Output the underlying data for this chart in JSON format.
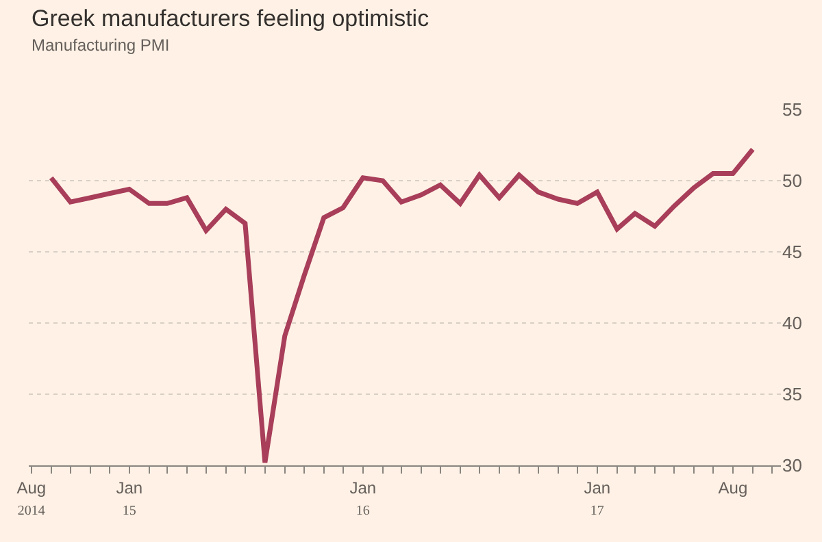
{
  "chart_data": {
    "type": "line",
    "title": "Greek manufacturers feeling optimistic",
    "subtitle": "Manufacturing PMI",
    "x": [
      "2014-09",
      "2014-10",
      "2014-11",
      "2014-12",
      "2015-01",
      "2015-02",
      "2015-03",
      "2015-04",
      "2015-05",
      "2015-06",
      "2015-07",
      "2015-08",
      "2015-09",
      "2015-10",
      "2015-11",
      "2015-12",
      "2016-01",
      "2016-02",
      "2016-03",
      "2016-04",
      "2016-05",
      "2016-06",
      "2016-07",
      "2016-08",
      "2016-09",
      "2016-10",
      "2016-11",
      "2016-12",
      "2017-01",
      "2017-02",
      "2017-03",
      "2017-04",
      "2017-05",
      "2017-06",
      "2017-07",
      "2017-08",
      "2017-09"
    ],
    "series": [
      {
        "color": "#a83e5a",
        "values": [
          50.2,
          48.5,
          48.8,
          49.1,
          49.4,
          48.4,
          48.4,
          48.8,
          46.5,
          48.0,
          47.0,
          30.2,
          39.1,
          43.3,
          47.4,
          48.1,
          50.2,
          50.0,
          48.5,
          49.0,
          49.7,
          48.4,
          50.4,
          48.8,
          50.4,
          49.2,
          48.7,
          48.4,
          49.2,
          46.6,
          47.7,
          46.8,
          48.2,
          49.5,
          50.5,
          50.5,
          52.2
        ]
      }
    ],
    "xlim": [
      "2014-07-28",
      "2017-10-15"
    ],
    "xticks": [
      {
        "value": "2014-08",
        "label": "Aug\n2014"
      },
      {
        "value": "2014-09",
        "label": null
      },
      {
        "value": "2014-10",
        "label": null
      },
      {
        "value": "2014-11",
        "label": null
      },
      {
        "value": "2014-12",
        "label": null
      },
      {
        "value": "2015-01",
        "label": "Jan\n15"
      },
      {
        "value": "2015-02",
        "label": null
      },
      {
        "value": "2015-03",
        "label": null
      },
      {
        "value": "2015-04",
        "label": null
      },
      {
        "value": "2015-05",
        "label": null
      },
      {
        "value": "2015-06",
        "label": null
      },
      {
        "value": "2015-07",
        "label": null
      },
      {
        "value": "2015-08",
        "label": null
      },
      {
        "value": "2015-09",
        "label": null
      },
      {
        "value": "2015-10",
        "label": null
      },
      {
        "value": "2015-11",
        "label": null
      },
      {
        "value": "2015-12",
        "label": null
      },
      {
        "value": "2016-01",
        "label": "Jan\n16"
      },
      {
        "value": "2016-02",
        "label": null
      },
      {
        "value": "2016-03",
        "label": null
      },
      {
        "value": "2016-04",
        "label": null
      },
      {
        "value": "2016-05",
        "label": null
      },
      {
        "value": "2016-06",
        "label": null
      },
      {
        "value": "2016-07",
        "label": null
      },
      {
        "value": "2016-08",
        "label": null
      },
      {
        "value": "2016-09",
        "label": null
      },
      {
        "value": "2016-10",
        "label": null
      },
      {
        "value": "2016-11",
        "label": null
      },
      {
        "value": "2016-12",
        "label": null
      },
      {
        "value": "2017-01",
        "label": "Jan\n17"
      },
      {
        "value": "2017-02",
        "label": null
      },
      {
        "value": "2017-03",
        "label": null
      },
      {
        "value": "2017-04",
        "label": null
      },
      {
        "value": "2017-05",
        "label": null
      },
      {
        "value": "2017-06",
        "label": null
      },
      {
        "value": "2017-07",
        "label": null
      },
      {
        "value": "2017-08",
        "label": "Aug"
      },
      {
        "value": "2017-09",
        "label": null
      },
      {
        "value": "2017-10",
        "label": null
      }
    ],
    "ylim": [
      30,
      55
    ],
    "yticks": [
      30,
      35,
      40,
      45,
      50,
      55
    ],
    "grid": "y",
    "line_style": "solid",
    "marker": "none"
  }
}
